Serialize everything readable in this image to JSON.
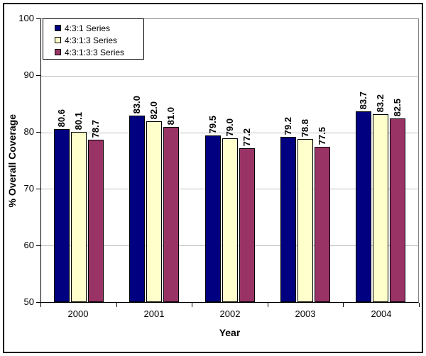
{
  "chart_data": {
    "type": "bar",
    "title": "",
    "categories": [
      "2000",
      "2001",
      "2002",
      "2003",
      "2004"
    ],
    "series": [
      {
        "name": "4:3:1 Series",
        "color": "#000080",
        "values": [
          80.6,
          83.0,
          79.5,
          79.2,
          83.7
        ]
      },
      {
        "name": "4:3:1:3 Series",
        "color": "#FFFFCC",
        "values": [
          80.1,
          82.0,
          79.0,
          78.8,
          83.2
        ]
      },
      {
        "name": "4:3:1:3:3 Series",
        "color": "#993366",
        "values": [
          78.7,
          81.0,
          77.2,
          77.5,
          82.5
        ]
      }
    ],
    "xlabel": "Year",
    "ylabel": "% Overall Coverage",
    "ylim": [
      50,
      100
    ],
    "yticks": [
      50,
      60,
      70,
      80,
      90,
      100
    ],
    "grid": true,
    "legend_position": "top-left",
    "data_labels": true,
    "label_decimals": 1
  },
  "colors": {
    "gridline": "#C0C0C0",
    "plot_border": "#848484",
    "axis": "#000000",
    "background": "#FFFFFF",
    "frame_border": "#000000"
  }
}
